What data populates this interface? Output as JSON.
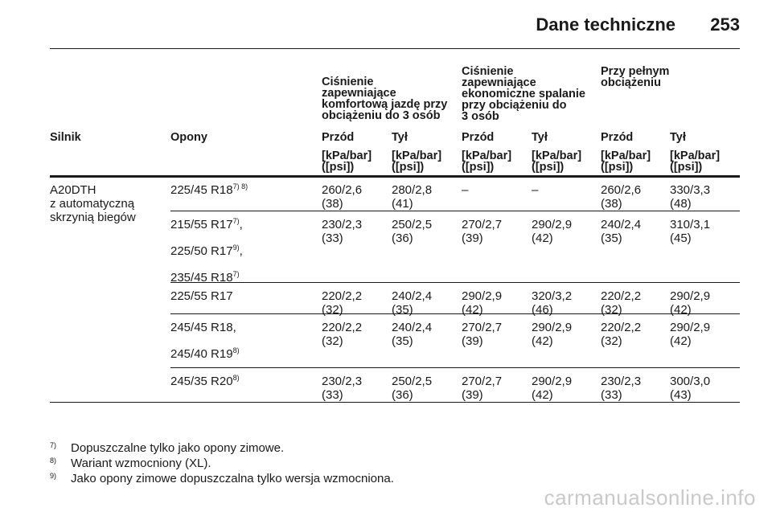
{
  "header": {
    "title": "Dane techniczne",
    "page": "253"
  },
  "groups": {
    "g1": [
      "Ciśnienie",
      "zapewniające",
      "komfortową jazdę przy",
      "obciążeniu do 3 osób"
    ],
    "g2": [
      "Ciśnienie",
      "zapewniające",
      "ekonomiczne spalanie",
      "przy obciążeniu do",
      "3 osób"
    ],
    "g3": [
      "Przy pełnym",
      "obciążeniu"
    ]
  },
  "columns": {
    "engine": "Silnik",
    "tyres": "Opony",
    "front": "Przód",
    "rear": "Tył",
    "unit_a": "[kPa/bar]",
    "unit_b": "([psi])"
  },
  "engine": [
    "A20DTH",
    "z automatyczną",
    "skrzynią biegów"
  ],
  "rows": [
    {
      "tyres": [
        {
          "t": "225/45 R18",
          "s": "7) 8)"
        }
      ],
      "values": [
        [
          "260/2,6",
          "(38)"
        ],
        [
          "280/2,8",
          "(41)"
        ],
        [
          "–",
          ""
        ],
        [
          "–",
          ""
        ],
        [
          "260/2,6",
          "(38)"
        ],
        [
          "330/3,3",
          "(48)"
        ]
      ]
    },
    {
      "tyres": [
        {
          "t": "215/55 R17",
          "s": "7)",
          "a": ","
        },
        {
          "t": "225/50 R17",
          "s": "9)",
          "a": ","
        },
        {
          "t": "235/45 R18",
          "s": "7)"
        }
      ],
      "values": [
        [
          "230/2,3",
          "(33)"
        ],
        [
          "250/2,5",
          "(36)"
        ],
        [
          "270/2,7",
          "(39)"
        ],
        [
          "290/2,9",
          "(42)"
        ],
        [
          "240/2,4",
          "(35)"
        ],
        [
          "310/3,1",
          "(45)"
        ]
      ]
    },
    {
      "tyres": [
        {
          "t": "225/55 R17"
        }
      ],
      "values": [
        [
          "220/2,2",
          "(32)"
        ],
        [
          "240/2,4",
          "(35)"
        ],
        [
          "290/2,9",
          "(42)"
        ],
        [
          "320/3,2",
          "(46)"
        ],
        [
          "220/2,2",
          "(32)"
        ],
        [
          "290/2,9",
          "(42)"
        ]
      ]
    },
    {
      "tyres": [
        {
          "t": "245/45 R18",
          "a": ","
        },
        {
          "t": "245/40 R19",
          "s": "8)"
        }
      ],
      "values": [
        [
          "220/2,2",
          "(32)"
        ],
        [
          "240/2,4",
          "(35)"
        ],
        [
          "270/2,7",
          "(39)"
        ],
        [
          "290/2,9",
          "(42)"
        ],
        [
          "220/2,2",
          "(32)"
        ],
        [
          "290/2,9",
          "(42)"
        ]
      ]
    },
    {
      "tyres": [
        {
          "t": "245/35 R20",
          "s": "8)"
        }
      ],
      "values": [
        [
          "230/2,3",
          "(33)"
        ],
        [
          "250/2,5",
          "(36)"
        ],
        [
          "270/2,7",
          "(39)"
        ],
        [
          "290/2,9",
          "(42)"
        ],
        [
          "230/2,3",
          "(33)"
        ],
        [
          "300/3,0",
          "(43)"
        ]
      ]
    }
  ],
  "footnotes": [
    {
      "n": "7)",
      "text": "Dopuszczalne tylko jako opony zimowe."
    },
    {
      "n": "8)",
      "text": "Wariant wzmocniony (XL)."
    },
    {
      "n": "9)",
      "text": "Jako opony zimowe dopuszczalna tylko wersja wzmocniona."
    }
  ],
  "watermark": "carmanualsonline.info"
}
